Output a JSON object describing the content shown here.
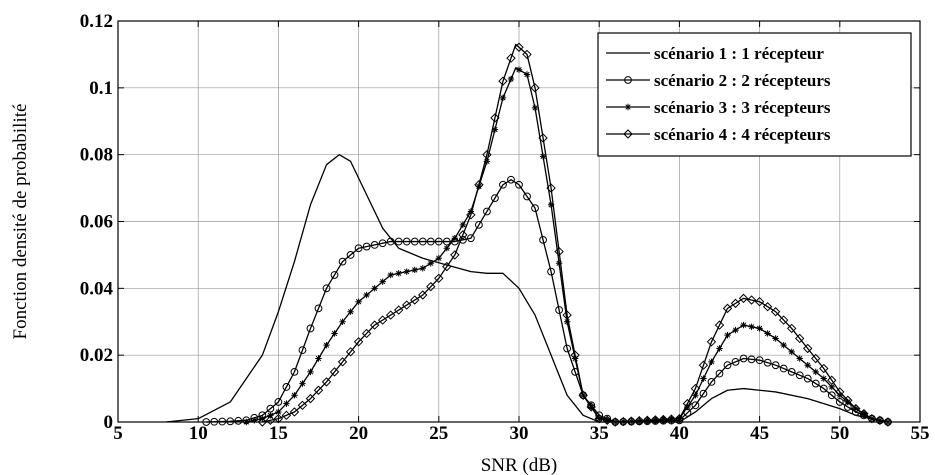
{
  "chart_data": {
    "type": "line",
    "title": "",
    "xlabel": "SNR (dB)",
    "ylabel": "Fonction densité de probabilité",
    "xlim": [
      5,
      55
    ],
    "ylim": [
      0,
      0.12
    ],
    "xticks": [
      5,
      10,
      15,
      20,
      25,
      30,
      35,
      40,
      45,
      50,
      55
    ],
    "yticks": [
      0,
      0.02,
      0.04,
      0.06,
      0.08,
      0.1,
      0.12
    ],
    "grid": true,
    "legend_position": "top-right",
    "series": [
      {
        "name": "scénario 1 : 1 récepteur",
        "marker": "none",
        "color": "#000000",
        "points": [
          [
            8,
            0
          ],
          [
            10,
            0.001
          ],
          [
            12,
            0.006
          ],
          [
            14,
            0.02
          ],
          [
            15,
            0.033
          ],
          [
            16,
            0.048
          ],
          [
            17,
            0.065
          ],
          [
            18,
            0.077
          ],
          [
            18.8,
            0.08
          ],
          [
            19.5,
            0.078
          ],
          [
            20.5,
            0.068
          ],
          [
            21.5,
            0.058
          ],
          [
            22.5,
            0.052
          ],
          [
            24,
            0.049
          ],
          [
            25.5,
            0.047
          ],
          [
            27,
            0.045
          ],
          [
            28,
            0.0445
          ],
          [
            29,
            0.0445
          ],
          [
            30,
            0.04
          ],
          [
            31,
            0.032
          ],
          [
            32,
            0.02
          ],
          [
            33,
            0.008
          ],
          [
            34,
            0.002
          ],
          [
            35,
            0
          ],
          [
            40,
            0
          ],
          [
            41,
            0.003
          ],
          [
            42,
            0.007
          ],
          [
            43,
            0.0095
          ],
          [
            44,
            0.01
          ],
          [
            46,
            0.009
          ],
          [
            48,
            0.007
          ],
          [
            50,
            0.004
          ],
          [
            51,
            0.002
          ],
          [
            52,
            0.001
          ],
          [
            53,
            0
          ]
        ]
      },
      {
        "name": "scénario 2 : 2 récepteurs",
        "marker": "circle",
        "color": "#000000",
        "points": [
          [
            10.5,
            0
          ],
          [
            12,
            0.0002
          ],
          [
            13,
            0.0005
          ],
          [
            14,
            0.002
          ],
          [
            15,
            0.006
          ],
          [
            16,
            0.015
          ],
          [
            17,
            0.028
          ],
          [
            18,
            0.04
          ],
          [
            19,
            0.048
          ],
          [
            20,
            0.052
          ],
          [
            21,
            0.053
          ],
          [
            22,
            0.054
          ],
          [
            24,
            0.054
          ],
          [
            26,
            0.054
          ],
          [
            27,
            0.055
          ],
          [
            28,
            0.063
          ],
          [
            29,
            0.071
          ],
          [
            29.5,
            0.0725
          ],
          [
            30,
            0.071
          ],
          [
            31,
            0.064
          ],
          [
            32,
            0.045
          ],
          [
            33,
            0.022
          ],
          [
            34,
            0.008
          ],
          [
            35,
            0.002
          ],
          [
            36,
            0
          ],
          [
            40,
            0.0005
          ],
          [
            41,
            0.005
          ],
          [
            42,
            0.012
          ],
          [
            43,
            0.017
          ],
          [
            44,
            0.019
          ],
          [
            45,
            0.0185
          ],
          [
            46,
            0.017
          ],
          [
            47,
            0.015
          ],
          [
            48,
            0.013
          ],
          [
            49,
            0.01
          ],
          [
            50,
            0.006
          ],
          [
            51,
            0.003
          ],
          [
            52,
            0.001
          ],
          [
            53,
            0
          ]
        ]
      },
      {
        "name": "scénario 3 : 3 récepteurs",
        "marker": "star",
        "color": "#000000",
        "points": [
          [
            13,
            0
          ],
          [
            14,
            0.001
          ],
          [
            15,
            0.003
          ],
          [
            16,
            0.008
          ],
          [
            17,
            0.015
          ],
          [
            18,
            0.023
          ],
          [
            19,
            0.03
          ],
          [
            20,
            0.036
          ],
          [
            21,
            0.04
          ],
          [
            22,
            0.044
          ],
          [
            23,
            0.045
          ],
          [
            24,
            0.046
          ],
          [
            25,
            0.049
          ],
          [
            26,
            0.055
          ],
          [
            27,
            0.063
          ],
          [
            28,
            0.078
          ],
          [
            29,
            0.097
          ],
          [
            29.8,
            0.106
          ],
          [
            30.5,
            0.104
          ],
          [
            31,
            0.094
          ],
          [
            32,
            0.065
          ],
          [
            33,
            0.03
          ],
          [
            34,
            0.008
          ],
          [
            35,
            0.001
          ],
          [
            36,
            0
          ],
          [
            40,
            0.001
          ],
          [
            41,
            0.008
          ],
          [
            42,
            0.018
          ],
          [
            43,
            0.026
          ],
          [
            44,
            0.029
          ],
          [
            45,
            0.028
          ],
          [
            46,
            0.025
          ],
          [
            47,
            0.021
          ],
          [
            48,
            0.017
          ],
          [
            49,
            0.013
          ],
          [
            50,
            0.008
          ],
          [
            51,
            0.004
          ],
          [
            52,
            0.001
          ],
          [
            53,
            0
          ]
        ]
      },
      {
        "name": "scénario 4 : 4 récepteurs",
        "marker": "diamond",
        "color": "#000000",
        "points": [
          [
            14,
            0
          ],
          [
            15,
            0.001
          ],
          [
            16,
            0.003
          ],
          [
            17,
            0.007
          ],
          [
            18,
            0.012
          ],
          [
            19,
            0.018
          ],
          [
            20,
            0.024
          ],
          [
            21,
            0.029
          ],
          [
            22,
            0.032
          ],
          [
            23,
            0.035
          ],
          [
            24,
            0.038
          ],
          [
            25,
            0.043
          ],
          [
            26,
            0.05
          ],
          [
            27,
            0.062
          ],
          [
            28,
            0.08
          ],
          [
            29,
            0.102
          ],
          [
            29.8,
            0.113
          ],
          [
            30.5,
            0.11
          ],
          [
            31,
            0.1
          ],
          [
            32,
            0.07
          ],
          [
            33,
            0.032
          ],
          [
            34,
            0.008
          ],
          [
            35,
            0.001
          ],
          [
            36,
            0
          ],
          [
            40,
            0.001
          ],
          [
            41,
            0.01
          ],
          [
            42,
            0.024
          ],
          [
            43,
            0.034
          ],
          [
            44,
            0.037
          ],
          [
            45,
            0.036
          ],
          [
            46,
            0.033
          ],
          [
            47,
            0.028
          ],
          [
            48,
            0.022
          ],
          [
            49,
            0.016
          ],
          [
            50,
            0.009
          ],
          [
            51,
            0.004
          ],
          [
            52,
            0.001
          ],
          [
            53,
            0
          ]
        ]
      }
    ]
  }
}
